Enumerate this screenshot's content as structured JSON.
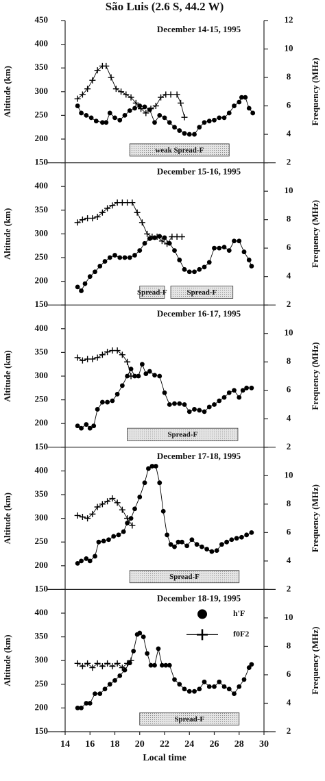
{
  "title": "São Luis (2.6 S, 44.2 W)",
  "chart_data": [
    {
      "type": "line",
      "title": "December 14-15, 1995",
      "ylabel": "Altitude (km)",
      "y2label": "Frequency (MHz)",
      "xlim": [
        14,
        30
      ],
      "ylim": [
        150,
        450
      ],
      "yticks": [
        150,
        200,
        250,
        300,
        350,
        400,
        450
      ],
      "y2lim": [
        2,
        12
      ],
      "y2ticks": [
        2,
        4,
        6,
        8,
        10,
        12
      ],
      "series": [
        {
          "marker": "dot",
          "color": "#000",
          "x": [
            15.0,
            15.3,
            15.7,
            16.1,
            16.5,
            17.0,
            17.3,
            17.6,
            18.0,
            18.4,
            18.8,
            19.2,
            19.6,
            20.0,
            20.4,
            20.8,
            21.2,
            21.6,
            22.0,
            22.4,
            22.8,
            23.2,
            23.6,
            24.0,
            24.4,
            24.8,
            25.2,
            25.6,
            26.0,
            26.4,
            26.8,
            27.2,
            27.6,
            28.0,
            28.2,
            28.5,
            28.8,
            29.1
          ],
          "values": [
            270,
            255,
            250,
            245,
            238,
            235,
            235,
            255,
            245,
            240,
            250,
            260,
            265,
            270,
            268,
            262,
            235,
            250,
            245,
            235,
            225,
            218,
            212,
            210,
            210,
            225,
            235,
            238,
            240,
            245,
            245,
            255,
            270,
            278,
            288,
            288,
            265,
            255
          ]
        },
        {
          "marker": "plus",
          "color": "#000",
          "axis": "y2",
          "x": [
            15.0,
            15.4,
            15.8,
            16.2,
            16.6,
            17.0,
            17.3,
            17.7,
            18.1,
            18.5,
            18.9,
            19.3,
            19.7,
            20.1,
            20.5,
            20.9,
            21.3,
            21.7,
            22.1,
            22.5,
            23.0,
            23.3,
            23.6
          ],
          "values": [
            6.5,
            6.8,
            7.2,
            7.8,
            8.5,
            8.8,
            8.8,
            8.0,
            7.2,
            7.0,
            6.8,
            6.6,
            6.2,
            5.8,
            5.5,
            5.8,
            6.0,
            6.6,
            6.8,
            6.8,
            6.8,
            6.2,
            5.2
          ]
        }
      ],
      "annotations": [
        {
          "text": "weak Spread-F",
          "x": [
            19.2,
            27.2
          ]
        }
      ]
    },
    {
      "type": "line",
      "title": "December 15-16, 1995",
      "ylabel": "Altitude (km)",
      "y2label": "Frequency (MHz)",
      "xlim": [
        14,
        30
      ],
      "ylim": [
        150,
        450
      ],
      "yticks": [
        150,
        200,
        250,
        300,
        350,
        400
      ],
      "y2lim": [
        2,
        12
      ],
      "y2ticks": [
        2,
        4,
        6,
        8,
        10
      ],
      "series": [
        {
          "marker": "dot",
          "color": "#000",
          "x": [
            15.0,
            15.3,
            15.6,
            16.0,
            16.4,
            16.8,
            17.2,
            17.6,
            18.0,
            18.4,
            18.8,
            19.2,
            19.6,
            20.0,
            20.4,
            20.8,
            21.2,
            21.6,
            22.0,
            22.4,
            22.8,
            23.2,
            23.6,
            24.0,
            24.4,
            24.8,
            25.2,
            25.6,
            26.0,
            26.4,
            26.8,
            27.2,
            27.6,
            28.0,
            28.4,
            28.8,
            29.0
          ],
          "values": [
            188,
            180,
            195,
            210,
            220,
            232,
            242,
            250,
            255,
            250,
            250,
            250,
            255,
            265,
            280,
            290,
            292,
            295,
            292,
            280,
            265,
            245,
            225,
            220,
            220,
            225,
            230,
            240,
            270,
            270,
            272,
            265,
            285,
            285,
            262,
            245,
            232
          ]
        },
        {
          "marker": "plus",
          "color": "#000",
          "axis": "y2",
          "x": [
            15.0,
            15.4,
            15.8,
            16.2,
            16.6,
            17.0,
            17.4,
            17.8,
            18.2,
            18.6,
            19.0,
            19.4,
            19.8,
            20.2,
            20.6,
            21.0,
            21.4,
            21.8,
            22.2,
            22.6,
            23.0,
            23.4
          ],
          "values": [
            7.8,
            8.0,
            8.1,
            8.1,
            8.2,
            8.5,
            8.8,
            9.0,
            9.2,
            9.2,
            9.2,
            9.2,
            8.5,
            7.8,
            7.0,
            6.8,
            6.8,
            6.5,
            6.3,
            6.8,
            6.8,
            6.8
          ]
        }
      ],
      "annotations": [
        {
          "text": "Spread-F",
          "x": [
            20.0,
            22.0
          ]
        },
        {
          "text": "Spread-F",
          "x": [
            22.5,
            27.5
          ]
        }
      ]
    },
    {
      "type": "line",
      "title": "December 16-17, 1995",
      "ylabel": "Altitude (km)",
      "y2label": "Frequency (MHz)",
      "xlim": [
        14,
        30
      ],
      "ylim": [
        150,
        450
      ],
      "yticks": [
        150,
        200,
        250,
        300,
        350,
        400
      ],
      "y2lim": [
        2,
        12
      ],
      "y2ticks": [
        2,
        4,
        6,
        8,
        10
      ],
      "series": [
        {
          "marker": "dot",
          "color": "#000",
          "x": [
            15.0,
            15.3,
            15.7,
            16.0,
            16.3,
            16.6,
            17.0,
            17.4,
            17.8,
            18.2,
            18.6,
            19.0,
            19.3,
            19.6,
            19.9,
            20.2,
            20.5,
            20.8,
            21.2,
            21.6,
            22.0,
            22.4,
            22.8,
            23.2,
            23.6,
            24.0,
            24.4,
            24.8,
            25.2,
            25.6,
            26.0,
            26.4,
            26.8,
            27.2,
            27.6,
            28.0,
            28.3,
            28.6,
            29.0
          ],
          "values": [
            195,
            190,
            198,
            190,
            195,
            230,
            245,
            245,
            248,
            262,
            280,
            300,
            315,
            300,
            300,
            325,
            305,
            310,
            302,
            300,
            265,
            240,
            242,
            242,
            240,
            225,
            230,
            228,
            225,
            235,
            240,
            248,
            255,
            265,
            270,
            255,
            270,
            275,
            275
          ]
        },
        {
          "marker": "plus",
          "color": "#000",
          "axis": "y2",
          "x": [
            15.0,
            15.4,
            15.8,
            16.2,
            16.6,
            17.0,
            17.4,
            17.8,
            18.2,
            18.6,
            19.0,
            19.3
          ],
          "values": [
            8.3,
            8.1,
            8.2,
            8.2,
            8.3,
            8.5,
            8.7,
            8.8,
            8.8,
            8.5,
            8.0,
            7.0
          ]
        }
      ],
      "annotations": [
        {
          "text": "Spread-F",
          "x": [
            19.0,
            27.9
          ]
        }
      ]
    },
    {
      "type": "line",
      "title": "December 17-18, 1995",
      "ylabel": "Altitude (km)",
      "y2label": "Frequency (MHz)",
      "xlim": [
        14,
        30
      ],
      "ylim": [
        150,
        450
      ],
      "yticks": [
        150,
        200,
        250,
        300,
        350,
        400
      ],
      "y2lim": [
        2,
        12
      ],
      "y2ticks": [
        2,
        4,
        6,
        8,
        10
      ],
      "series": [
        {
          "marker": "dot",
          "color": "#000",
          "x": [
            15.0,
            15.3,
            15.7,
            16.0,
            16.4,
            16.7,
            17.1,
            17.5,
            17.9,
            18.3,
            18.7,
            19.0,
            19.3,
            19.6,
            20.0,
            20.4,
            20.7,
            21.0,
            21.3,
            21.6,
            21.9,
            22.2,
            22.5,
            22.8,
            23.1,
            23.4,
            23.8,
            24.2,
            24.6,
            25.0,
            25.4,
            25.8,
            26.2,
            26.6,
            27.0,
            27.4,
            27.8,
            28.2,
            28.6,
            29.0
          ],
          "values": [
            205,
            210,
            215,
            210,
            220,
            250,
            252,
            255,
            262,
            265,
            272,
            290,
            300,
            320,
            345,
            375,
            405,
            410,
            410,
            375,
            315,
            265,
            245,
            240,
            250,
            250,
            242,
            255,
            245,
            240,
            235,
            230,
            232,
            245,
            250,
            255,
            258,
            260,
            265,
            270
          ]
        },
        {
          "marker": "plus",
          "color": "#000",
          "axis": "y2",
          "x": [
            15.0,
            15.4,
            15.8,
            16.2,
            16.6,
            17.0,
            17.4,
            17.8,
            18.2,
            18.6,
            19.0,
            19.4
          ],
          "values": [
            7.2,
            7.1,
            7.0,
            7.3,
            7.8,
            8.0,
            8.2,
            8.4,
            8.1,
            7.6,
            7.0,
            6.5
          ]
        }
      ],
      "annotations": [
        {
          "text": "Spread-F",
          "x": [
            19.2,
            28.0
          ]
        }
      ]
    },
    {
      "type": "line",
      "title": "December 18-19, 1995",
      "ylabel": "Altitude (km)",
      "y2label": "Frequency (MHz)",
      "xlabel": "Local time",
      "xlim": [
        14,
        30
      ],
      "xticks": [
        14,
        16,
        18,
        20,
        22,
        24,
        26,
        28,
        30
      ],
      "ylim": [
        150,
        450
      ],
      "yticks": [
        150,
        200,
        250,
        300,
        350,
        400
      ],
      "y2lim": [
        2,
        12
      ],
      "y2ticks": [
        2,
        4,
        6,
        8,
        10
      ],
      "legend": "upper right",
      "series": [
        {
          "name": "h'F",
          "marker": "dot",
          "color": "#000",
          "x": [
            15.0,
            15.3,
            15.7,
            16.0,
            16.4,
            16.8,
            17.2,
            17.6,
            18.0,
            18.4,
            18.8,
            19.2,
            19.5,
            19.8,
            20.0,
            20.3,
            20.6,
            20.9,
            21.2,
            21.5,
            21.8,
            22.1,
            22.4,
            22.8,
            23.2,
            23.6,
            24.0,
            24.4,
            24.8,
            25.2,
            25.6,
            26.0,
            26.4,
            26.8,
            27.2,
            27.6,
            28.0,
            28.4,
            28.8,
            29.0
          ],
          "values": [
            200,
            200,
            210,
            210,
            230,
            230,
            240,
            250,
            258,
            268,
            280,
            295,
            320,
            355,
            358,
            350,
            315,
            290,
            290,
            325,
            290,
            290,
            290,
            260,
            250,
            240,
            235,
            235,
            240,
            255,
            245,
            245,
            255,
            245,
            240,
            230,
            245,
            260,
            285,
            292
          ]
        },
        {
          "name": "f0F2",
          "marker": "plus",
          "color": "#000",
          "axis": "y2",
          "x": [
            15.0,
            15.4,
            15.8,
            16.2,
            16.6,
            17.0,
            17.4,
            17.8,
            18.2,
            18.6,
            19.0,
            19.3
          ],
          "values": [
            6.8,
            6.6,
            6.8,
            6.5,
            6.8,
            6.6,
            6.8,
            6.6,
            6.8,
            6.5,
            6.8,
            7.0
          ]
        }
      ],
      "annotations": [
        {
          "text": "Spread-F",
          "x": [
            20.0,
            28.0
          ]
        }
      ]
    }
  ]
}
